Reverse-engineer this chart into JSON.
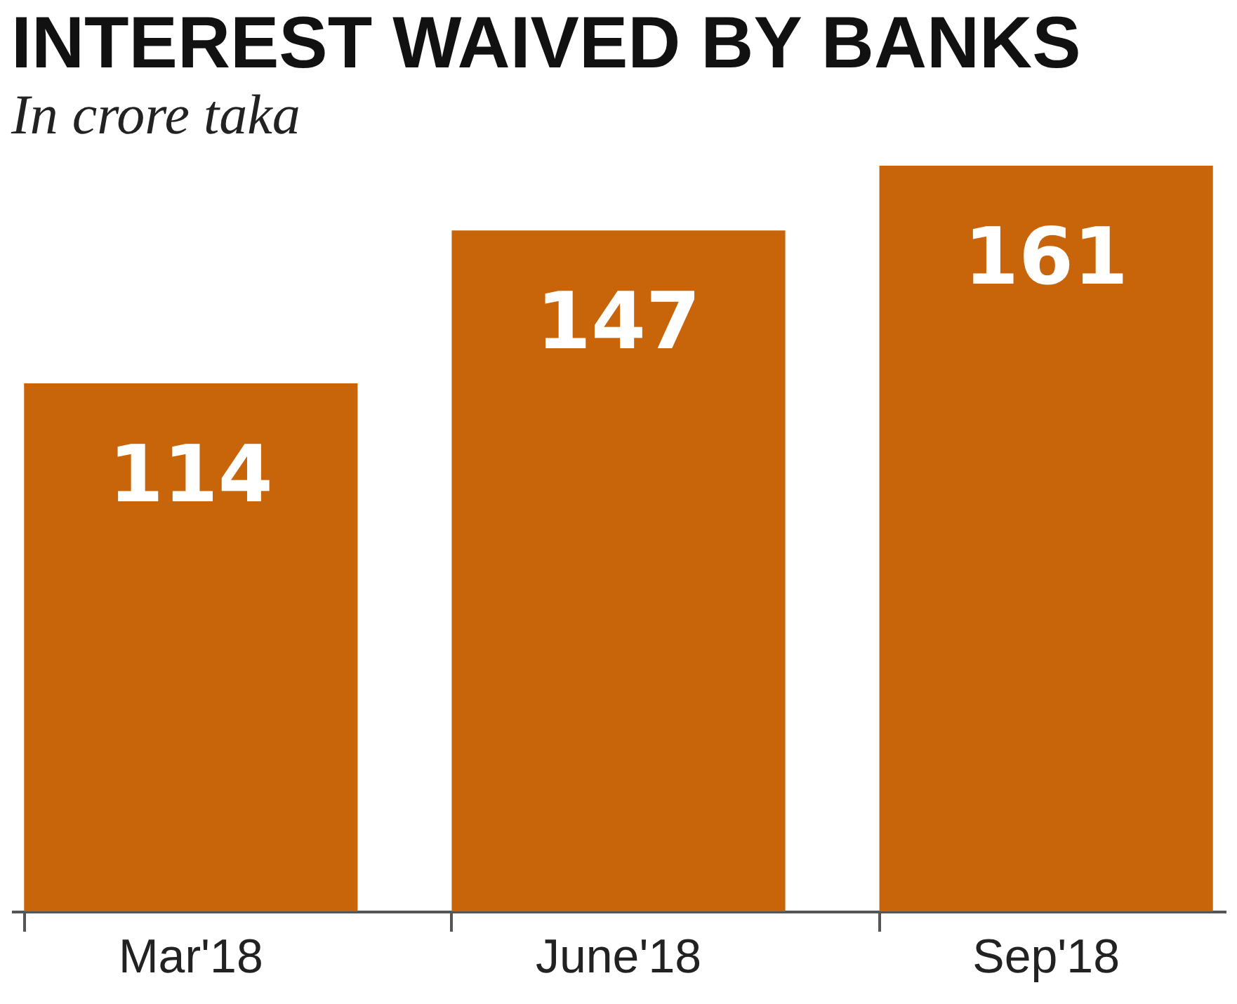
{
  "chart_data": {
    "type": "bar",
    "title": "INTEREST WAIVED BY BANKS",
    "subtitle": "In crore taka",
    "categories": [
      "Mar'18",
      "June'18",
      "Sep'18"
    ],
    "values": [
      114,
      147,
      161
    ],
    "color": "#c8640a",
    "data_labels": true
  }
}
